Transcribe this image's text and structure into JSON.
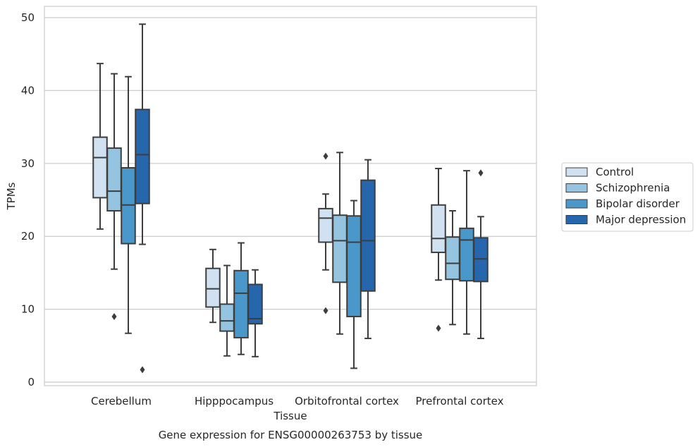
{
  "chart_data": {
    "type": "box",
    "xlabel": "Tissue",
    "ylabel": "TPMs",
    "caption": "Gene expression for ENSG00000263753 by tissue",
    "ylim": [
      0,
      50
    ],
    "yticks": [
      0,
      10,
      20,
      30,
      40,
      50
    ],
    "grid": "horizontal",
    "legend_position": "right",
    "categories": [
      "Cerebellum",
      "Hipppocampus",
      "Orbitofrontal cortex",
      "Prefrontal cortex"
    ],
    "series": [
      {
        "name": "Control",
        "color": "#d0e1f2",
        "boxes": [
          {
            "whislo": 21.0,
            "q1": 25.3,
            "med": 30.8,
            "q3": 33.6,
            "whishi": 43.7,
            "fliers": []
          },
          {
            "whislo": 8.2,
            "q1": 10.3,
            "med": 12.8,
            "q3": 15.6,
            "whishi": 18.2,
            "fliers": []
          },
          {
            "whislo": 15.4,
            "q1": 19.2,
            "med": 22.5,
            "q3": 23.8,
            "whishi": 25.8,
            "fliers": [
              31.0,
              9.8
            ]
          },
          {
            "whislo": 14.0,
            "q1": 17.8,
            "med": 19.7,
            "q3": 24.3,
            "whishi": 29.3,
            "fliers": [
              7.4
            ]
          }
        ]
      },
      {
        "name": "Schizophrenia",
        "color": "#94c4df",
        "boxes": [
          {
            "whislo": 15.5,
            "q1": 23.5,
            "med": 26.2,
            "q3": 32.1,
            "whishi": 42.3,
            "fliers": [
              9.0
            ]
          },
          {
            "whislo": 3.6,
            "q1": 7.0,
            "med": 8.4,
            "q3": 10.7,
            "whishi": 16.0,
            "fliers": []
          },
          {
            "whislo": 6.6,
            "q1": 13.7,
            "med": 19.4,
            "q3": 22.9,
            "whishi": 31.5,
            "fliers": []
          },
          {
            "whislo": 7.9,
            "q1": 14.1,
            "med": 16.3,
            "q3": 19.9,
            "whishi": 23.5,
            "fliers": []
          }
        ]
      },
      {
        "name": "Bipolar disorder",
        "color": "#4a98c9",
        "boxes": [
          {
            "whislo": 6.7,
            "q1": 19.0,
            "med": 24.3,
            "q3": 29.4,
            "whishi": 41.9,
            "fliers": []
          },
          {
            "whislo": 3.8,
            "q1": 6.1,
            "med": 12.2,
            "q3": 15.3,
            "whishi": 19.1,
            "fliers": []
          },
          {
            "whislo": 1.9,
            "q1": 9.0,
            "med": 19.2,
            "q3": 22.8,
            "whishi": 24.9,
            "fliers": []
          },
          {
            "whislo": 6.6,
            "q1": 13.9,
            "med": 19.5,
            "q3": 21.1,
            "whishi": 29.0,
            "fliers": []
          }
        ]
      },
      {
        "name": "Major depression",
        "color": "#2666ad",
        "boxes": [
          {
            "whislo": 18.9,
            "q1": 24.5,
            "med": 31.2,
            "q3": 37.4,
            "whishi": 49.1,
            "fliers": [
              1.7
            ]
          },
          {
            "whislo": 3.5,
            "q1": 8.0,
            "med": 8.7,
            "q3": 13.4,
            "whishi": 15.4,
            "fliers": []
          },
          {
            "whislo": 6.0,
            "q1": 12.5,
            "med": 19.4,
            "q3": 27.7,
            "whishi": 30.5,
            "fliers": []
          },
          {
            "whislo": 6.0,
            "q1": 13.8,
            "med": 16.9,
            "q3": 19.8,
            "whishi": 22.7,
            "fliers": [
              28.7
            ]
          }
        ]
      }
    ]
  }
}
